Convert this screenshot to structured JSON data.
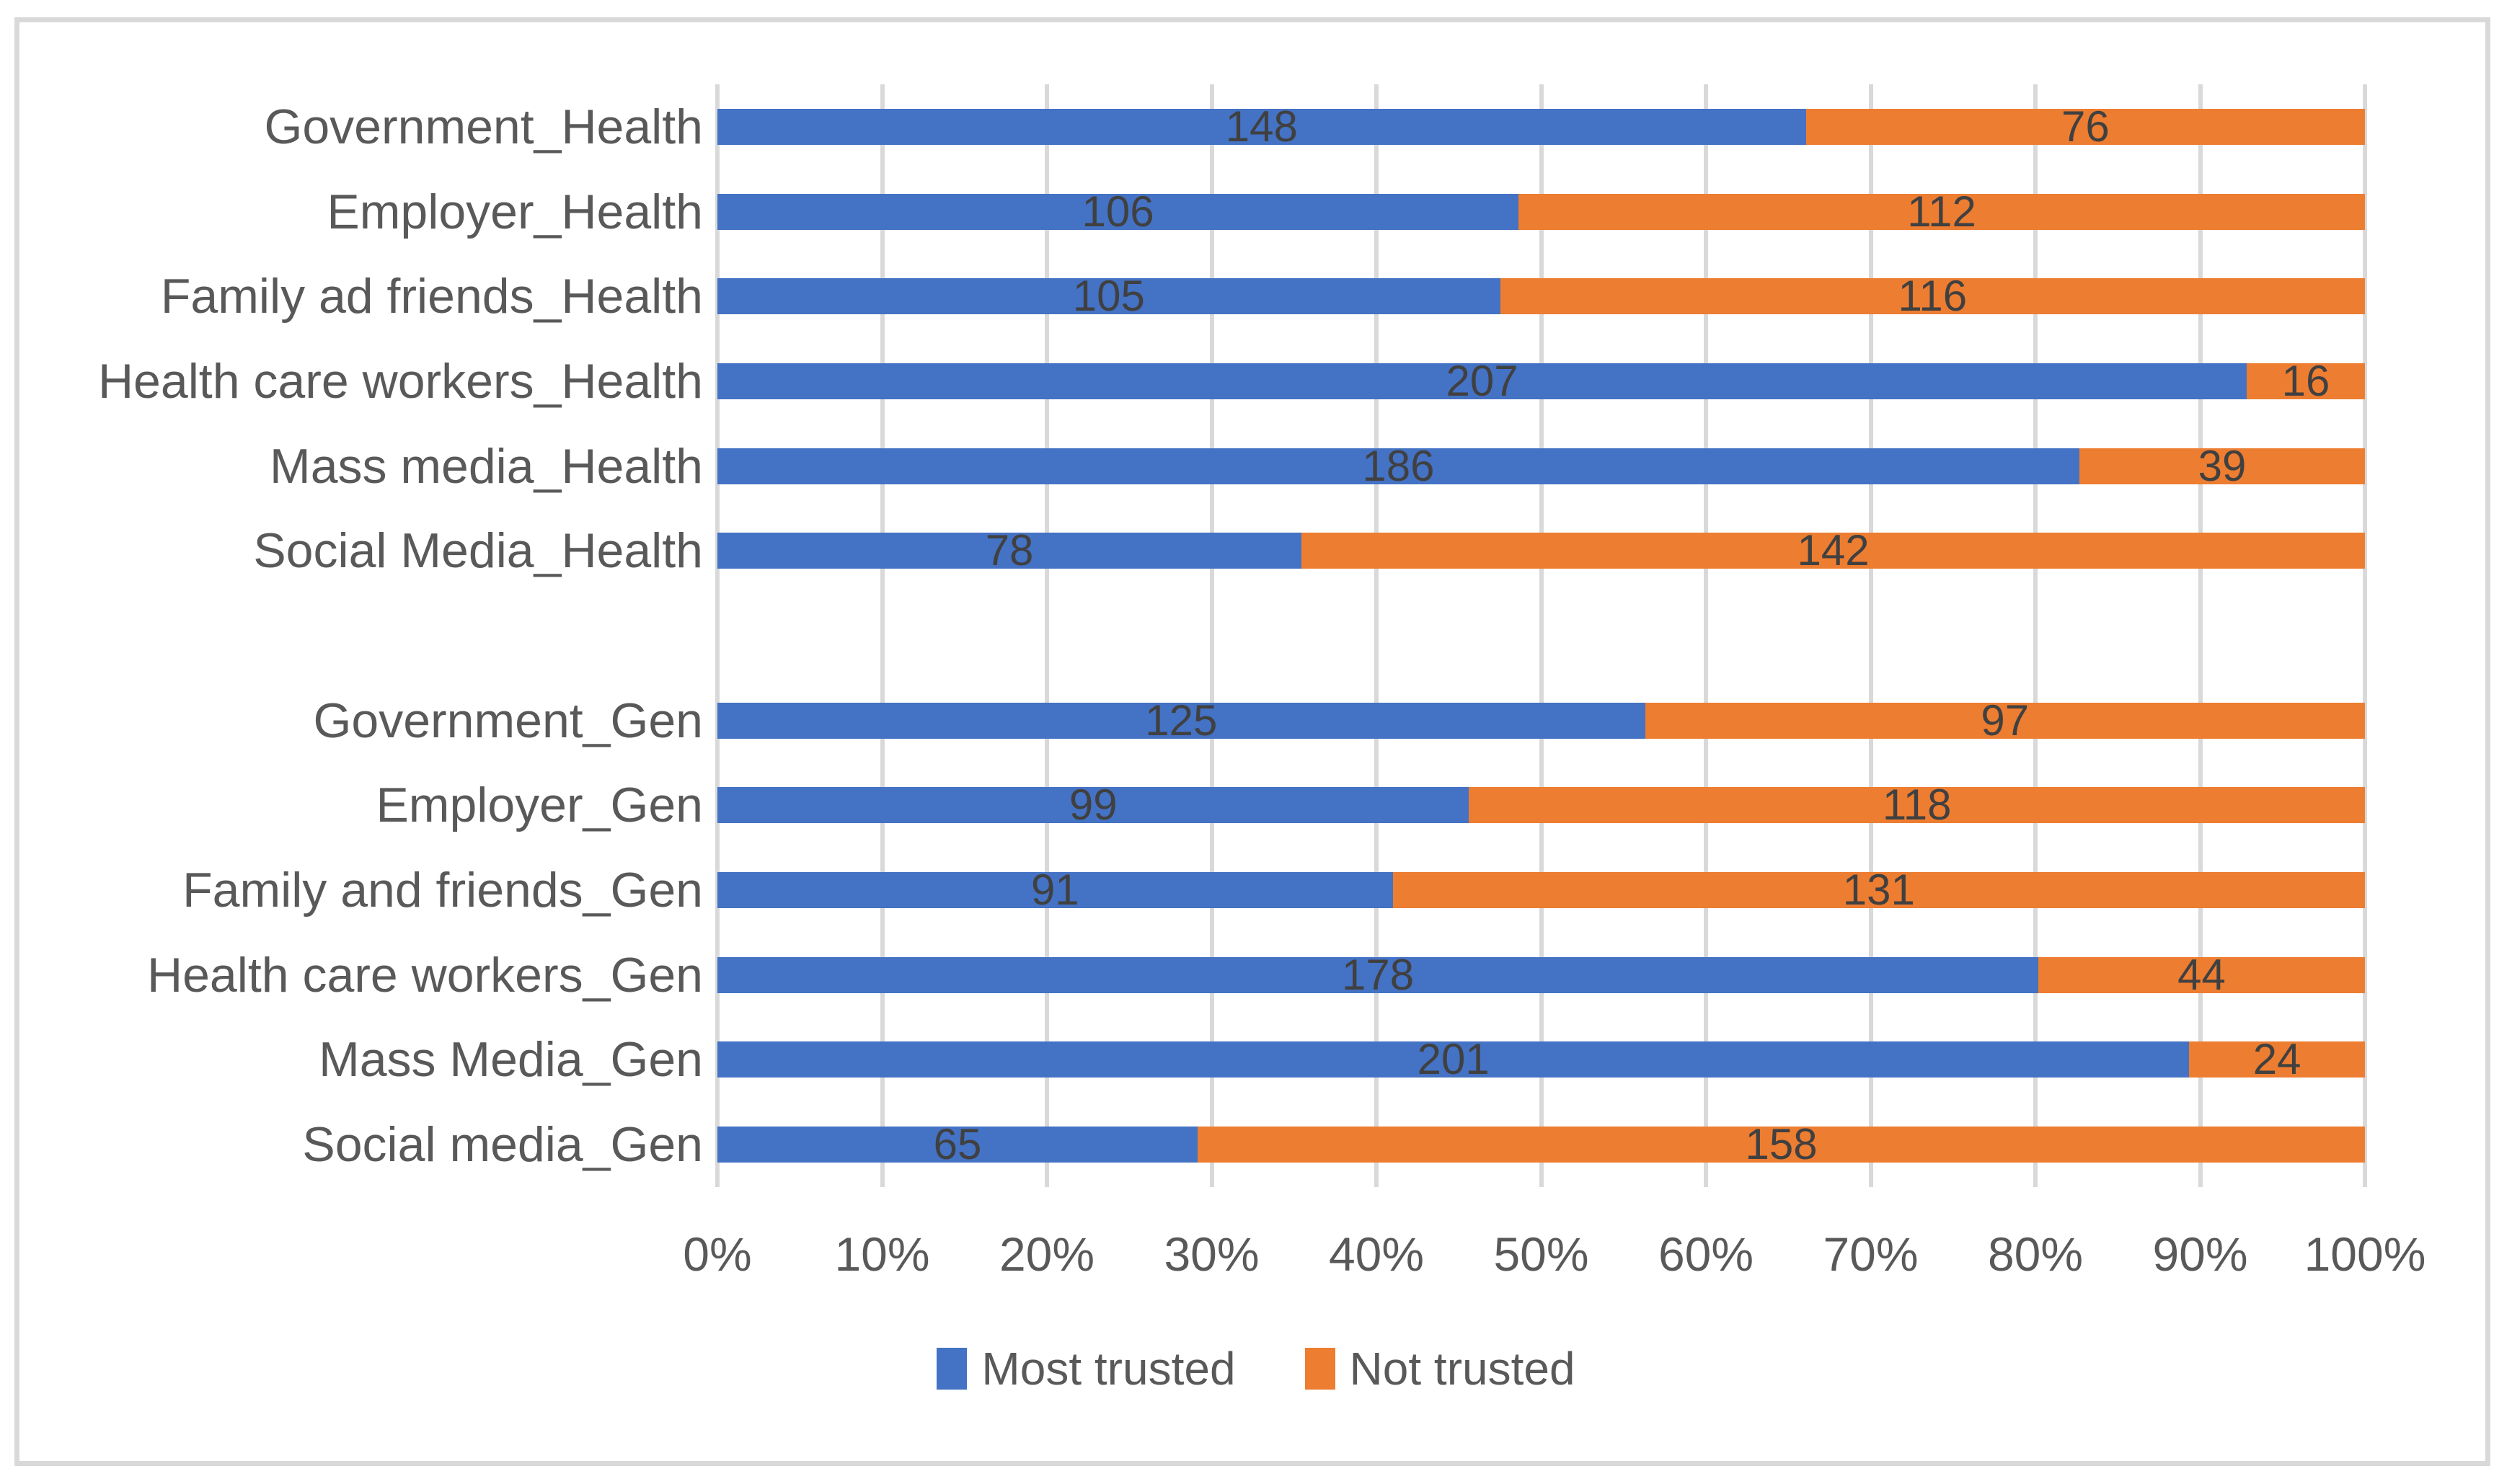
{
  "chart_data": {
    "type": "bar",
    "orientation": "horizontal",
    "stack_mode": "100%",
    "title": "",
    "categories": [
      "Government_Health",
      "Employer_Health",
      "Family ad friends_Health",
      "Health care workers_Health",
      "Mass media_Health",
      "Social Media_Health",
      "Government_Gen",
      "Employer_Gen",
      "Family and friends_Gen",
      "Health care workers_Gen",
      "Mass Media_Gen",
      "Social media_Gen"
    ],
    "series": [
      {
        "name": "Most trusted",
        "color": "#4472C4",
        "values": [
          148,
          106,
          105,
          207,
          186,
          78,
          125,
          99,
          91,
          178,
          201,
          65
        ]
      },
      {
        "name": "Not trusted",
        "color": "#ED7D31",
        "values": [
          76,
          112,
          116,
          16,
          39,
          142,
          97,
          118,
          131,
          44,
          24,
          158
        ]
      }
    ],
    "group_break_after_index": 5,
    "x_ticks": [
      "0%",
      "10%",
      "20%",
      "30%",
      "40%",
      "50%",
      "60%",
      "70%",
      "80%",
      "90%",
      "100%"
    ],
    "xlim": [
      0,
      100
    ],
    "grid": true,
    "legend_position": "bottom",
    "gridline_color": "#D9D9D9",
    "border_color": "#D9D9D9",
    "axis_text_color": "#595959",
    "data_label_color": "#404040",
    "background_color": "#FFFFFF"
  }
}
